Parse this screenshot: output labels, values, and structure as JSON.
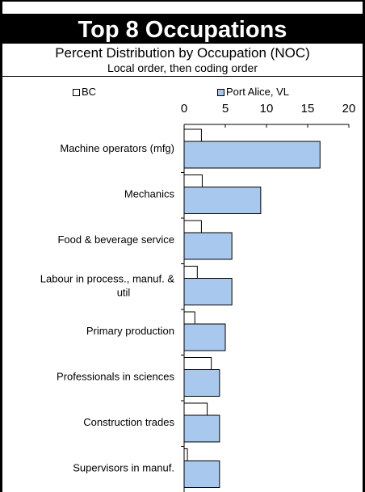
{
  "chart_data": {
    "type": "bar",
    "orientation": "horizontal",
    "title": "Top 8 Occupations",
    "subtitle": "Percent Distribution by Occupation (NOC)",
    "subtitle2": "Local order, then coding order",
    "xlim": [
      0,
      20
    ],
    "xticks": [
      "0",
      "5",
      "10",
      "15",
      "20"
    ],
    "categories": [
      "Machine operators (mfg)",
      "Mechanics",
      "Food & beverage service",
      "Labour in process., manuf. & util",
      "Primary production",
      "Professionals in sciences",
      "Construction trades",
      "Supervisors in manuf."
    ],
    "series": [
      {
        "name": "BC",
        "values": [
          2.1,
          2.2,
          2.1,
          1.6,
          1.3,
          3.3,
          2.8,
          0.4
        ]
      },
      {
        "name": "Port Alice, VL",
        "values": [
          16.5,
          9.3,
          5.8,
          5.8,
          5.0,
          4.3,
          4.3,
          4.3
        ]
      }
    ],
    "legend_position": "top",
    "colors": {
      "bc": "#ffffff",
      "local": "#a9c8ee",
      "border": "#000000",
      "title_bg": "#000000",
      "title_fg": "#ffffff"
    }
  }
}
